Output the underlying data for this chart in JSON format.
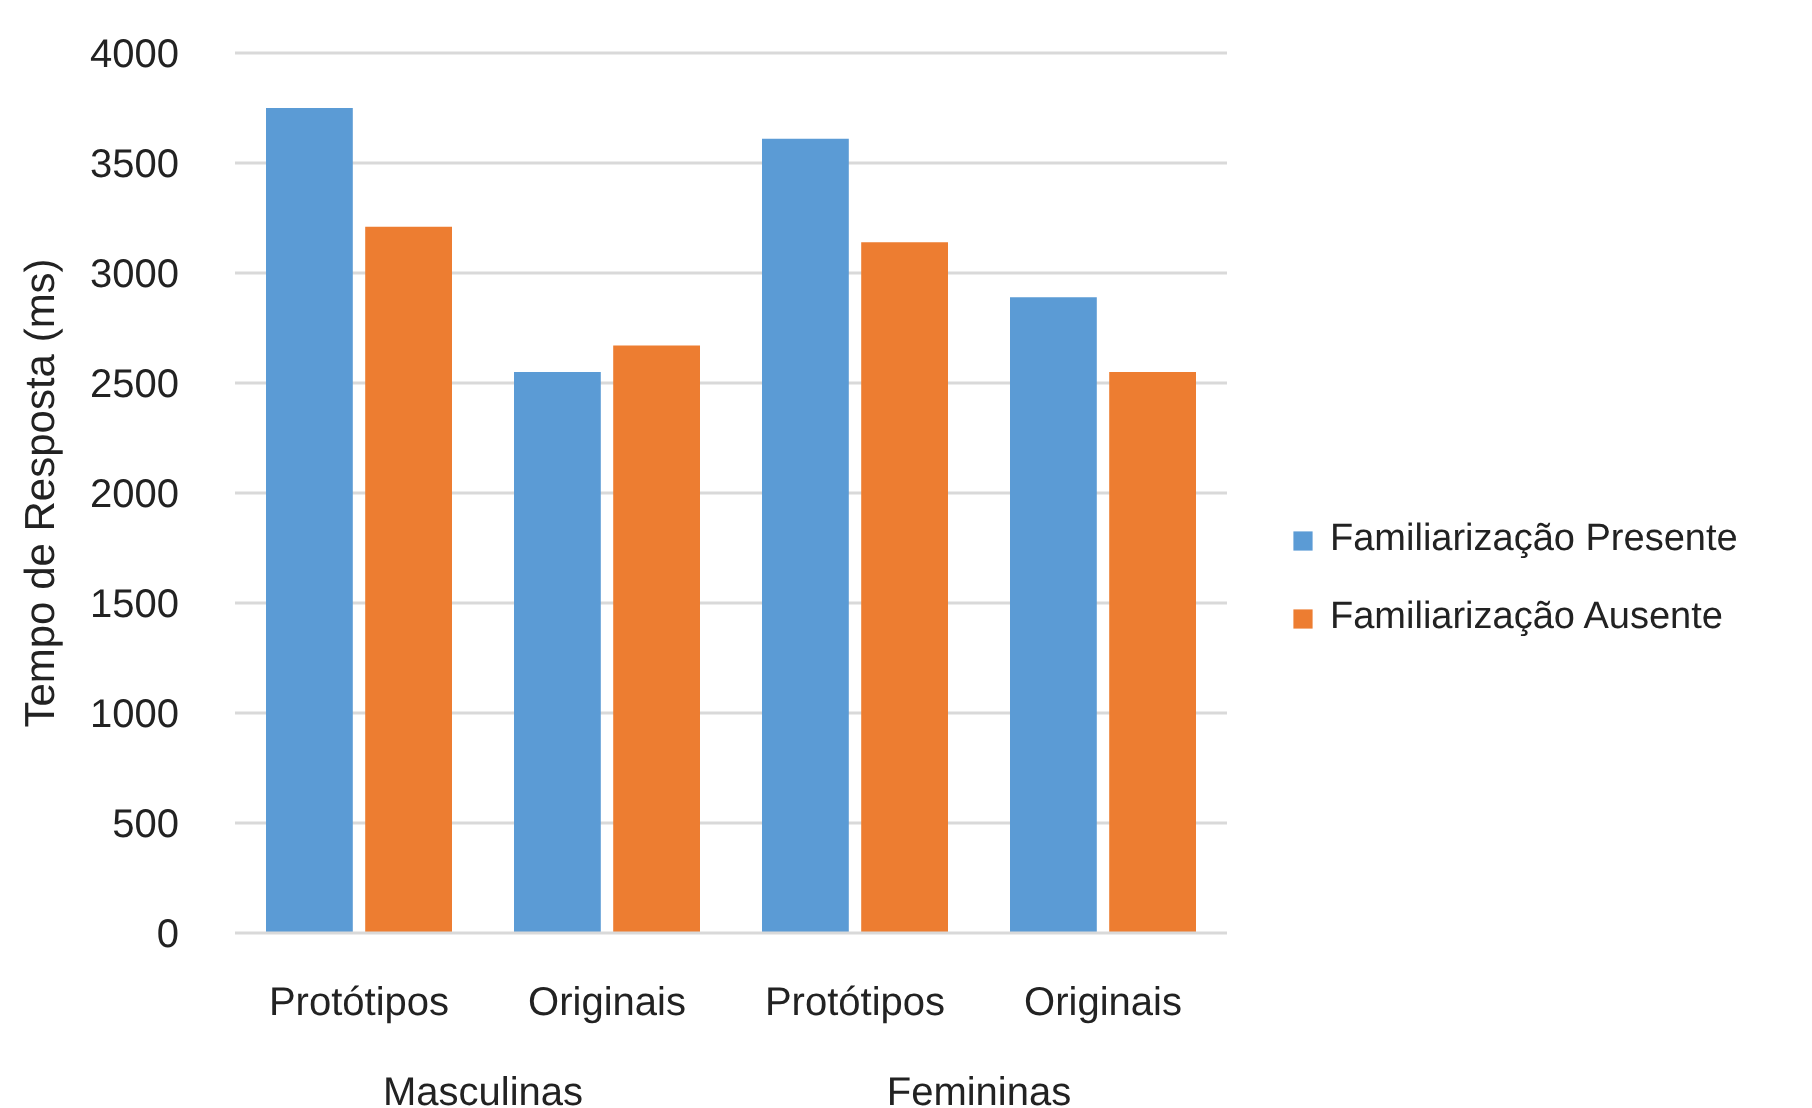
{
  "chart_data": {
    "type": "bar",
    "categories": [
      "Protótipos",
      "Originais",
      "Protótipos",
      "Originais"
    ],
    "series": [
      {
        "name": "Familiarização Presente",
        "color": "#5b9bd5",
        "values": [
          3750,
          2550,
          3610,
          2890
        ]
      },
      {
        "name": "Familiarização Ausente",
        "color": "#ed7d31",
        "values": [
          3210,
          2670,
          3140,
          2550
        ]
      }
    ],
    "ylabel": "Tempo de Resposta (ms)",
    "ylim": [
      0,
      4000
    ],
    "yticks": [
      0,
      500,
      1000,
      1500,
      2000,
      2500,
      3000,
      3500,
      4000
    ],
    "grid": "y",
    "legend": "right",
    "annotations": [
      "Masculinas",
      "Femininas"
    ]
  }
}
